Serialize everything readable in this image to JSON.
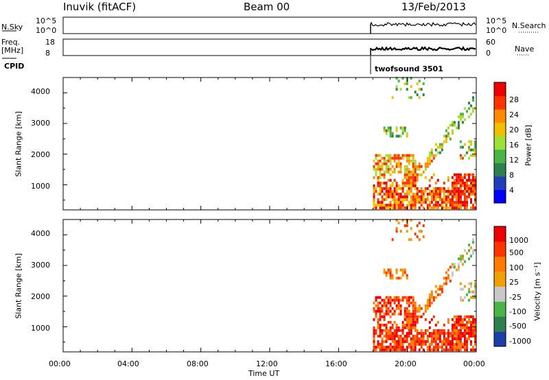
{
  "header": {
    "station": "Inuvik (fitACF)",
    "beam": "Beam 00",
    "date": "13/Feb/2013"
  },
  "summary_panel": {
    "left_top_label": "N.Sky",
    "left_bottom_label_line1": "Freq.",
    "left_bottom_label_line2": "[MHz]",
    "cpid_label": "CPID",
    "right_top_label": "N.Search",
    "right_bottom_label": "Nave",
    "left_ticks_top": [
      "10^5",
      "10^0"
    ],
    "left_ticks_bottom": [
      "18",
      "8"
    ],
    "right_ticks_top": [
      "10^5",
      "10^0"
    ],
    "right_ticks_bottom": [
      "60",
      "0"
    ],
    "cpid_text": "twofsound 3501"
  },
  "chart_data": [
    {
      "type": "heatmap",
      "name": "power",
      "ylabel": "Slant Range [km]",
      "y_ticks": [
        "1000",
        "2000",
        "3000",
        "4000"
      ],
      "ylim": [
        180,
        4500
      ],
      "colorbar_label": "Power [dB]",
      "colorbar_ticks": [
        "28",
        "24",
        "20",
        "16",
        "12",
        "8",
        "4"
      ],
      "colors": [
        "#0000ff",
        "#1f3fb8",
        "#2e7f4f",
        "#49b548",
        "#9ee03a",
        "#f0c000",
        "#ff8a00",
        "#ff3300",
        "#ee0000"
      ]
    },
    {
      "type": "heatmap",
      "name": "velocity",
      "ylabel": "Slant Range [km]",
      "y_ticks": [
        "1000",
        "2000",
        "3000",
        "4000"
      ],
      "ylim": [
        180,
        4500
      ],
      "xlabel": "Time UT",
      "x_ticks": [
        "00:00",
        "04:00",
        "08:00",
        "12:00",
        "16:00",
        "20:00",
        "00:00"
      ],
      "colorbar_label": "Velocity [m s⁻¹]",
      "colorbar_ticks": [
        "1000",
        "500",
        "100",
        "25",
        "-25",
        "-100",
        "-500",
        "-1000"
      ],
      "colors": [
        "#1a3fa8",
        "#2e7f4f",
        "#49b548",
        "#c8c8c8",
        "#f0a000",
        "#ff7a00",
        "#ff3300",
        "#ee0000"
      ]
    }
  ]
}
